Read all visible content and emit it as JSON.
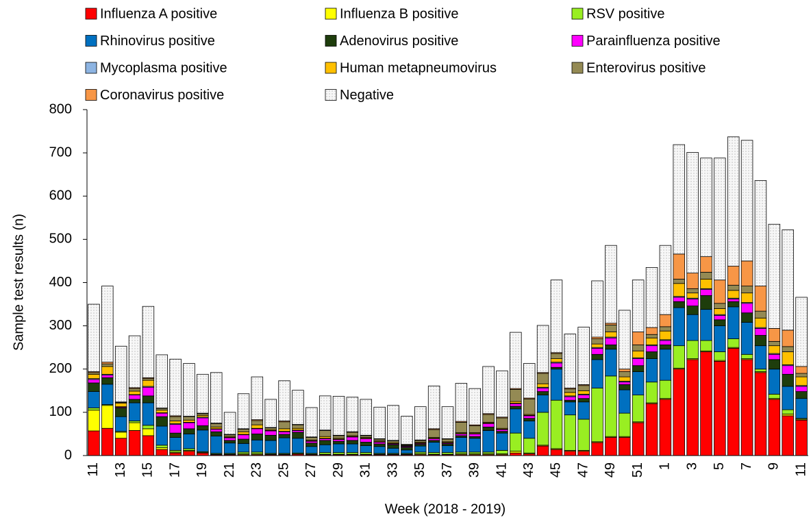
{
  "chart_data": {
    "type": "stacked_bar",
    "x_label": "Week (2018 - 2019)",
    "y_label": "Sample test results (n)",
    "categories": [
      "11",
      null,
      "13",
      null,
      "15",
      null,
      "17",
      null,
      "19",
      null,
      "21",
      null,
      "23",
      null,
      "25",
      null,
      "27",
      null,
      "29",
      null,
      "31",
      null,
      "33",
      null,
      "35",
      null,
      "37",
      null,
      "39",
      null,
      "41",
      null,
      "43",
      null,
      "45",
      null,
      "47",
      null,
      "49",
      null,
      "51",
      null,
      "1",
      null,
      "3",
      null,
      "5",
      null,
      "7",
      null,
      "9",
      null,
      "11"
    ],
    "ylim": [
      0,
      800
    ],
    "yticks": [
      0,
      100,
      200,
      300,
      400,
      500,
      600,
      700,
      800
    ],
    "grid": false,
    "legend": "top",
    "series": [
      {
        "name": "Influenza A positive",
        "color": "#ff0000",
        "values": [
          57,
          63,
          40,
          58,
          46,
          14,
          6,
          10,
          6,
          2,
          2,
          2,
          2,
          2,
          2,
          3,
          2,
          2,
          2,
          2,
          2,
          2,
          2,
          2,
          2,
          2,
          2,
          2,
          2,
          2,
          2,
          6,
          4,
          22,
          14,
          10,
          10,
          30,
          42,
          42,
          76,
          120,
          130,
          200,
          222,
          240,
          218,
          248,
          222,
          192,
          130,
          92,
          82
        ]
      },
      {
        "name": "Influenza B positive",
        "color": "#ffff00",
        "values": [
          48,
          53,
          14,
          18,
          16,
          4,
          2,
          2,
          1,
          1,
          1,
          2,
          2,
          1,
          1,
          1,
          1,
          1,
          1,
          1,
          1,
          1,
          1,
          1,
          2,
          1,
          1,
          2,
          2,
          2,
          2,
          4,
          2,
          2,
          2,
          2,
          2,
          2,
          2,
          2,
          2,
          2,
          2,
          2,
          2,
          2,
          2,
          2,
          2,
          2,
          2,
          4,
          2
        ]
      },
      {
        "name": "RSV positive",
        "color": "#99ee22",
        "values": [
          5,
          2,
          2,
          4,
          8,
          6,
          4,
          4,
          2,
          2,
          2,
          4,
          4,
          2,
          2,
          2,
          2,
          4,
          4,
          4,
          4,
          2,
          2,
          2,
          4,
          4,
          4,
          4,
          4,
          4,
          8,
          42,
          34,
          76,
          112,
          82,
          72,
          124,
          140,
          54,
          62,
          48,
          42,
          52,
          42,
          24,
          20,
          20,
          10,
          6,
          10,
          10,
          2
        ]
      },
      {
        "name": "Rhinovirus positive",
        "color": "#0070c0",
        "values": [
          38,
          47,
          34,
          42,
          52,
          44,
          30,
          34,
          50,
          40,
          24,
          20,
          28,
          30,
          36,
          34,
          16,
          18,
          20,
          20,
          16,
          16,
          12,
          8,
          14,
          24,
          16,
          34,
          32,
          50,
          40,
          56,
          40,
          40,
          72,
          30,
          40,
          66,
          62,
          54,
          54,
          54,
          72,
          88,
          60,
          72,
          60,
          74,
          74,
          54,
          58,
          54,
          46
        ]
      },
      {
        "name": "Adenovirus positive",
        "color": "#1e3d0c",
        "values": [
          20,
          15,
          20,
          8,
          16,
          22,
          10,
          12,
          10,
          10,
          6,
          10,
          14,
          12,
          8,
          14,
          8,
          10,
          6,
          8,
          8,
          6,
          8,
          6,
          4,
          4,
          4,
          4,
          4,
          8,
          4,
          6,
          6,
          8,
          4,
          4,
          8,
          12,
          10,
          12,
          14,
          16,
          10,
          14,
          20,
          32,
          14,
          12,
          22,
          24,
          22,
          28,
          16
        ]
      },
      {
        "name": "Parainfluenza positive",
        "color": "#ff00ff",
        "values": [
          8,
          6,
          2,
          10,
          20,
          8,
          20,
          14,
          18,
          6,
          6,
          10,
          12,
          10,
          6,
          4,
          4,
          4,
          4,
          8,
          8,
          4,
          2,
          2,
          2,
          4,
          2,
          4,
          6,
          8,
          4,
          6,
          6,
          8,
          10,
          8,
          8,
          14,
          16,
          6,
          16,
          14,
          10,
          10,
          16,
          14,
          10,
          6,
          22,
          16,
          12,
          20,
          12
        ]
      },
      {
        "name": "Mycoplasma positive",
        "color": "#8db4e2",
        "values": [
          2,
          2,
          1,
          1,
          2,
          1,
          2,
          1,
          2,
          1,
          1,
          1,
          1,
          1,
          1,
          1,
          1,
          1,
          1,
          1,
          1,
          1,
          1,
          1,
          1,
          1,
          1,
          1,
          1,
          1,
          1,
          1,
          1,
          2,
          2,
          2,
          2,
          2,
          2,
          2,
          2,
          2,
          2,
          2,
          2,
          2,
          2,
          2,
          2,
          2,
          2,
          2,
          2
        ]
      },
      {
        "name": "Human metapneumovirus",
        "color": "#ffc000",
        "values": [
          10,
          18,
          8,
          8,
          14,
          6,
          6,
          5,
          4,
          4,
          2,
          6,
          8,
          2,
          6,
          4,
          2,
          4,
          2,
          2,
          2,
          2,
          2,
          1,
          2,
          2,
          2,
          2,
          2,
          2,
          2,
          4,
          2,
          8,
          8,
          8,
          8,
          8,
          12,
          10,
          16,
          16,
          20,
          30,
          12,
          22,
          14,
          18,
          22,
          22,
          18,
          30,
          20
        ]
      },
      {
        "name": "Enterovirus positive",
        "color": "#948a54",
        "values": [
          4,
          6,
          2,
          6,
          4,
          4,
          10,
          8,
          4,
          8,
          4,
          6,
          10,
          4,
          16,
          8,
          6,
          14,
          6,
          8,
          4,
          4,
          4,
          2,
          4,
          18,
          6,
          24,
          16,
          18,
          24,
          28,
          36,
          24,
          12,
          8,
          12,
          12,
          16,
          12,
          14,
          8,
          10,
          10,
          10,
          16,
          12,
          12,
          16,
          16,
          10,
          12,
          8
        ]
      },
      {
        "name": "Coronavirus positive",
        "color": "#f79646",
        "values": [
          2,
          4,
          1,
          2,
          2,
          1,
          2,
          1,
          1,
          1,
          1,
          1,
          2,
          1,
          2,
          1,
          1,
          1,
          1,
          1,
          1,
          1,
          1,
          1,
          1,
          2,
          1,
          2,
          2,
          2,
          2,
          2,
          2,
          2,
          2,
          2,
          2,
          4,
          4,
          6,
          30,
          16,
          28,
          58,
          36,
          36,
          54,
          44,
          58,
          58,
          30,
          38,
          16
        ]
      },
      {
        "name": "Negative",
        "color": "#f2f2f2",
        "values": [
          156,
          176,
          129,
          120,
          165,
          123,
          131,
          122,
          90,
          117,
          51,
          81,
          99,
          65,
          93,
          79,
          68,
          79,
          90,
          80,
          83,
          73,
          81,
          65,
          77,
          99,
          74,
          88,
          84,
          109,
          107,
          130,
          80,
          109,
          168,
          125,
          133,
          130,
          180,
          136,
          120,
          139,
          160,
          253,
          279,
          228,
          282,
          299,
          279,
          244,
          241,
          232,
          160
        ]
      }
    ]
  }
}
